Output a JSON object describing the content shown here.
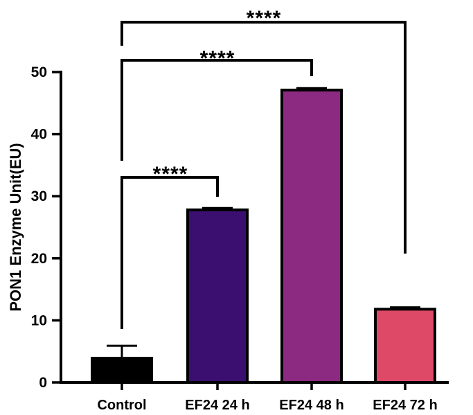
{
  "chart_data": {
    "type": "bar",
    "categories": [
      "Control",
      "EF24 24 h",
      "EF24 48 h",
      "EF24 72 h"
    ],
    "values": [
      3.9,
      27.8,
      47.1,
      11.8
    ],
    "errors": [
      2.0,
      0.3,
      0.3,
      0.3
    ],
    "colors": [
      "#000000",
      "#3b0f6f",
      "#8c2981",
      "#de4968"
    ],
    "ylabel": "PON1 Enzyme Unit(EU)",
    "xlabel": "",
    "title": "",
    "ylim": [
      0,
      50
    ],
    "yticks": [
      0,
      10,
      20,
      30,
      40,
      50
    ],
    "grid": false,
    "legend": "none",
    "significance": [
      {
        "from": "Control",
        "to": "EF24 24 h",
        "label": "****"
      },
      {
        "from": "Control",
        "to": "EF24 48 h",
        "label": "****"
      },
      {
        "from": "Control",
        "to": "EF24 72 h",
        "label": "****"
      }
    ]
  }
}
